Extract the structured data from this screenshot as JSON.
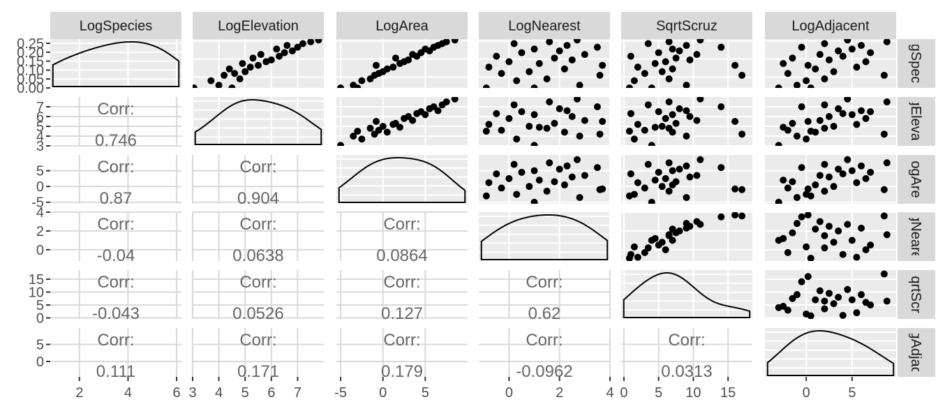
{
  "chart_data": {
    "type": "scatter",
    "variables": [
      "LogSpecies",
      "LogElevation",
      "LogArea",
      "LogNearest",
      "SqrtScruz",
      "LogAdjacent"
    ],
    "y_strip_labels": [
      "gSpec",
      "gElevat",
      "ogAre",
      "gNeare",
      "qrtScr",
      "gAdjac"
    ],
    "axes": {
      "LogSpecies": {
        "range": [
          0.8,
          6.2
        ],
        "ticks": [
          2,
          4,
          6
        ],
        "labels": [
          "2",
          "4",
          "6"
        ]
      },
      "LogElevation": {
        "range": [
          3.0,
          8.0
        ],
        "ticks": [
          3,
          4,
          5,
          6,
          7
        ],
        "labels": [
          "3",
          "4",
          "5",
          "6",
          "7"
        ]
      },
      "LogArea": {
        "range": [
          -5.5,
          10.0
        ],
        "ticks": [
          -5,
          0,
          5
        ],
        "labels": [
          "-5",
          "0",
          "5"
        ]
      },
      "LogNearest": {
        "range": [
          -1.2,
          4.0
        ],
        "ticks": [
          0,
          2,
          4
        ],
        "labels": [
          "0",
          "2",
          "4"
        ]
      },
      "SqrtScruz": {
        "range": [
          -0.4,
          18.5
        ],
        "ticks": [
          0,
          5,
          10,
          15
        ],
        "labels": [
          "0",
          "5",
          "10",
          "15"
        ]
      },
      "LogAdjacent": {
        "range": [
          -4.5,
          9.8
        ],
        "ticks": [
          0,
          5
        ],
        "labels": [
          "0",
          "5"
        ]
      }
    },
    "diag_density_yaxis": {
      "range": [
        0,
        0.25
      ],
      "ticks": [
        0,
        0.05,
        0.1,
        0.15,
        0.2,
        0.25
      ],
      "labels": [
        "0.00",
        "0.05",
        "0.10",
        "0.15",
        "0.20",
        "0.25"
      ]
    },
    "row_axes": {
      "LogElevation": {
        "ticks": [
          3,
          4,
          5,
          6,
          7
        ],
        "labels": [
          "3",
          "4",
          "5",
          "6",
          "7"
        ]
      },
      "LogArea": {
        "ticks": [
          -5,
          0,
          5
        ],
        "labels": [
          "-5",
          "0",
          "5"
        ]
      },
      "LogNearest": {
        "ticks": [
          0,
          2,
          4
        ],
        "labels": [
          "0",
          "2",
          "4"
        ]
      },
      "SqrtScruz": {
        "ticks": [
          0,
          5,
          10,
          15
        ],
        "labels": [
          "0",
          "5",
          "10",
          "15"
        ]
      },
      "LogAdjacent": {
        "ticks": [
          0,
          5
        ],
        "labels": [
          "0",
          "5"
        ]
      }
    },
    "correlations": [
      {
        "row": "LogElevation",
        "col": "LogSpecies",
        "label": "Corr:",
        "value": "0.746"
      },
      {
        "row": "LogArea",
        "col": "LogSpecies",
        "label": "Corr:",
        "value": "0.87"
      },
      {
        "row": "LogArea",
        "col": "LogElevation",
        "label": "Corr:",
        "value": "0.904"
      },
      {
        "row": "LogNearest",
        "col": "LogSpecies",
        "label": "Corr:",
        "value": "-0.04"
      },
      {
        "row": "LogNearest",
        "col": "LogElevation",
        "label": "Corr:",
        "value": "0.0638"
      },
      {
        "row": "LogNearest",
        "col": "LogArea",
        "label": "Corr:",
        "value": "0.0864"
      },
      {
        "row": "SqrtScruz",
        "col": "LogSpecies",
        "label": "Corr:",
        "value": "-0.043"
      },
      {
        "row": "SqrtScruz",
        "col": "LogElevation",
        "label": "Corr:",
        "value": "0.0526"
      },
      {
        "row": "SqrtScruz",
        "col": "LogArea",
        "label": "Corr:",
        "value": "0.127"
      },
      {
        "row": "SqrtScruz",
        "col": "LogNearest",
        "label": "Corr:",
        "value": "0.62"
      },
      {
        "row": "LogAdjacent",
        "col": "LogSpecies",
        "label": "Corr:",
        "value": "0.111"
      },
      {
        "row": "LogAdjacent",
        "col": "LogElevation",
        "label": "Corr:",
        "value": "0.171"
      },
      {
        "row": "LogAdjacent",
        "col": "LogArea",
        "label": "Corr:",
        "value": "0.179"
      },
      {
        "row": "LogAdjacent",
        "col": "LogNearest",
        "label": "Corr:",
        "value": "-0.0962"
      },
      {
        "row": "LogAdjacent",
        "col": "SqrtScruz",
        "label": "Corr:",
        "value": "0.0313"
      }
    ],
    "observations": [
      {
        "LogSpecies": 0.8,
        "LogElevation": 3.05,
        "LogArea": -5.0,
        "LogNearest": 1.0,
        "SqrtScruz": 4.0,
        "LogAdjacent": -3.0
      },
      {
        "LogSpecies": 1.6,
        "LogElevation": 3.7,
        "LogArea": -2.5,
        "LogNearest": 0.3,
        "SqrtScruz": 1.5,
        "LogAdjacent": 0.0
      },
      {
        "LogSpecies": 0.8,
        "LogElevation": 4.5,
        "LogArea": -3.0,
        "LogNearest": -0.9,
        "SqrtScruz": 0.8,
        "LogAdjacent": 0.5
      },
      {
        "LogSpecies": 1.1,
        "LogElevation": 4.0,
        "LogArea": -3.5,
        "LogNearest": 2.8,
        "SqrtScruz": 9.0,
        "LogAdjacent": -1.0
      },
      {
        "LogSpecies": 1.8,
        "LogElevation": 4.8,
        "LogArea": -1.5,
        "LogNearest": 1.5,
        "SqrtScruz": 6.5,
        "LogAdjacent": 2.0
      },
      {
        "LogSpecies": 2.2,
        "LogElevation": 4.2,
        "LogArea": -1.0,
        "LogNearest": 3.6,
        "SqrtScruz": 17.0,
        "LogAdjacent": 8.5
      },
      {
        "LogSpecies": 2.4,
        "LogElevation": 4.6,
        "LogArea": -0.5,
        "LogNearest": -0.3,
        "SqrtScruz": 3.0,
        "LogAdjacent": -2.0
      },
      {
        "LogSpecies": 2.6,
        "LogElevation": 5.0,
        "LogArea": 0.0,
        "LogNearest": 0.8,
        "SqrtScruz": 5.5,
        "LogAdjacent": 3.0
      },
      {
        "LogSpecies": 2.9,
        "LogElevation": 4.4,
        "LogArea": 0.5,
        "LogNearest": 2.2,
        "SqrtScruz": 7.0,
        "LogAdjacent": 1.0
      },
      {
        "LogSpecies": 3.1,
        "LogElevation": 5.2,
        "LogArea": 1.2,
        "LogNearest": -0.8,
        "SqrtScruz": 2.0,
        "LogAdjacent": 5.5
      },
      {
        "LogSpecies": 3.3,
        "LogElevation": 5.5,
        "LogArea": -0.8,
        "LogNearest": 3.7,
        "SqrtScruz": 16.0,
        "LogAdjacent": 0.2
      },
      {
        "LogSpecies": 3.5,
        "LogElevation": 4.9,
        "LogArea": 2.0,
        "LogNearest": 1.2,
        "SqrtScruz": 4.5,
        "LogAdjacent": -2.5
      },
      {
        "LogSpecies": 3.7,
        "LogElevation": 5.8,
        "LogArea": 2.5,
        "LogNearest": 0.0,
        "SqrtScruz": 6.0,
        "LogAdjacent": 6.5
      },
      {
        "LogSpecies": 3.9,
        "LogElevation": 6.0,
        "LogArea": 3.0,
        "LogNearest": 2.5,
        "SqrtScruz": 9.5,
        "LogAdjacent": 2.5
      },
      {
        "LogSpecies": 4.1,
        "LogElevation": 5.3,
        "LogArea": 1.5,
        "LogNearest": 1.8,
        "SqrtScruz": 7.5,
        "LogAdjacent": -1.5
      },
      {
        "LogSpecies": 4.3,
        "LogElevation": 6.3,
        "LogArea": 4.0,
        "LogNearest": -0.5,
        "SqrtScruz": 1.0,
        "LogAdjacent": 4.0
      },
      {
        "LogSpecies": 4.5,
        "LogElevation": 5.6,
        "LogArea": 3.5,
        "LogNearest": 3.0,
        "SqrtScruz": 10.5,
        "LogAdjacent": 1.5
      },
      {
        "LogSpecies": 4.7,
        "LogElevation": 6.5,
        "LogArea": 4.5,
        "LogNearest": 0.5,
        "SqrtScruz": 5.0,
        "LogAdjacent": 7.0
      },
      {
        "LogSpecies": 4.9,
        "LogElevation": 6.8,
        "LogArea": 5.5,
        "LogNearest": 2.0,
        "SqrtScruz": 8.0,
        "LogAdjacent": 3.5
      },
      {
        "LogSpecies": 5.1,
        "LogElevation": 6.2,
        "LogArea": 5.0,
        "LogNearest": 1.0,
        "SqrtScruz": 7.0,
        "LogAdjacent": 5.0
      },
      {
        "LogSpecies": 5.3,
        "LogElevation": 7.0,
        "LogArea": 6.0,
        "LogNearest": 3.5,
        "SqrtScruz": 14.0,
        "LogAdjacent": -0.5
      },
      {
        "LogSpecies": 5.5,
        "LogElevation": 6.6,
        "LogArea": 6.5,
        "LogNearest": 2.3,
        "SqrtScruz": 9.0,
        "LogAdjacent": 6.0
      },
      {
        "LogSpecies": 5.7,
        "LogElevation": 7.2,
        "LogArea": 7.0,
        "LogNearest": 0.2,
        "SqrtScruz": 3.5,
        "LogAdjacent": 2.0
      },
      {
        "LogSpecies": 5.9,
        "LogElevation": 7.5,
        "LogArea": 7.5,
        "LogNearest": 1.6,
        "SqrtScruz": 6.5,
        "LogAdjacent": 8.8
      },
      {
        "LogSpecies": 6.1,
        "LogElevation": 7.8,
        "LogArea": 8.5,
        "LogNearest": 2.7,
        "SqrtScruz": 11.0,
        "LogAdjacent": 4.5
      }
    ]
  }
}
